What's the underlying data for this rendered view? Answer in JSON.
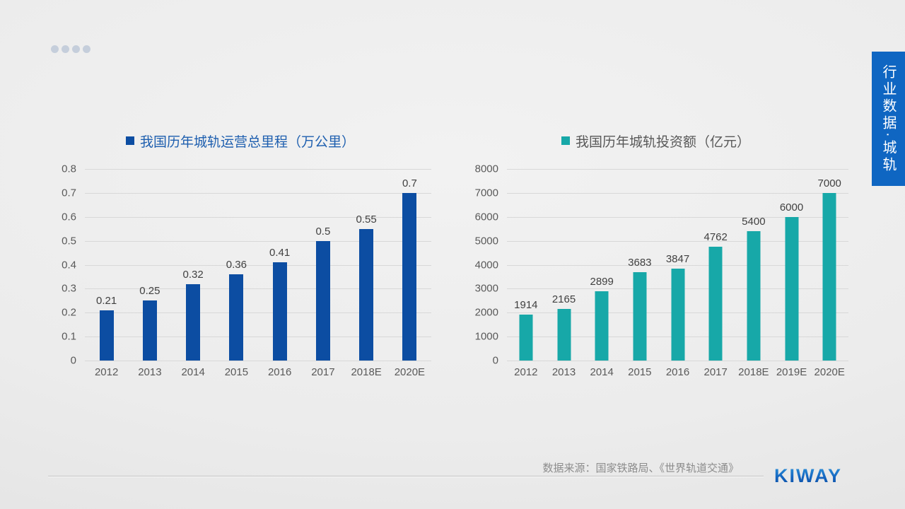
{
  "slide": {
    "pagination_dots": 4,
    "side_tab": {
      "label": "行业数据·城轨",
      "color": "#0F66C2"
    },
    "footer": {
      "source": "数据来源：国家铁路局、《世界轨道交通》",
      "logo": "KIWAY"
    }
  },
  "chart_data": [
    {
      "type": "bar",
      "title": "我国历年城轨运营总里程（万公里）",
      "categories": [
        "2012",
        "2013",
        "2014",
        "2015",
        "2016",
        "2017",
        "2018E",
        "2020E"
      ],
      "values": [
        0.21,
        0.25,
        0.32,
        0.36,
        0.41,
        0.5,
        0.55,
        0.7
      ],
      "labels": [
        "0.21",
        "0.25",
        "0.32",
        "0.36",
        "0.41",
        "0.5",
        "0.55",
        "0.7"
      ],
      "ylim": [
        0,
        0.8
      ],
      "ytick_step": 0.1,
      "yticks": [
        "0.8",
        "0.7",
        "0.6",
        "0.5",
        "0.4",
        "0.3",
        "0.2",
        "0.1",
        "0"
      ],
      "grid": true,
      "legend_position": "top",
      "bar_color": "#0c4da2",
      "title_color": "#1e5faf"
    },
    {
      "type": "bar",
      "title": "我国历年城轨投资额（亿元）",
      "categories": [
        "2012",
        "2013",
        "2014",
        "2015",
        "2016",
        "2017",
        "2018E",
        "2019E",
        "2020E"
      ],
      "values": [
        1914,
        2165,
        2899,
        3683,
        3847,
        4762,
        5400,
        6000,
        7000
      ],
      "labels": [
        "1914",
        "2165",
        "2899",
        "3683",
        "3847",
        "4762",
        "5400",
        "6000",
        "7000"
      ],
      "ylim": [
        0,
        8000
      ],
      "ytick_step": 1000,
      "yticks": [
        "8000",
        "7000",
        "6000",
        "5000",
        "4000",
        "3000",
        "2000",
        "1000",
        "0"
      ],
      "grid": true,
      "legend_position": "top",
      "bar_color": "#17a8a8",
      "title_color": "#595959"
    }
  ]
}
